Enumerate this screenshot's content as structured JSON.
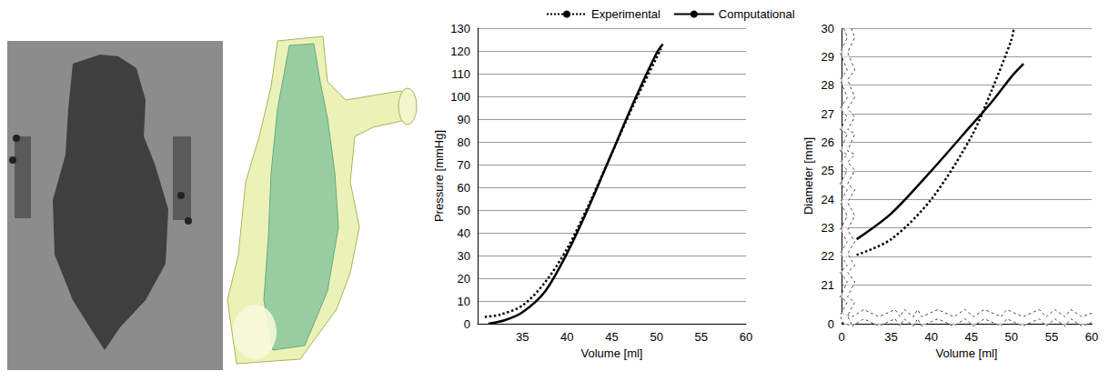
{
  "chart_data": [
    {
      "type": "line",
      "x_label": "Volume [ml]",
      "y_label": "Pressure [mmHg]",
      "xlim": [
        30,
        60
      ],
      "xticks": [
        35,
        40,
        45,
        50,
        55,
        60
      ],
      "ylim": [
        0,
        130
      ],
      "yticks": [
        0,
        10,
        20,
        30,
        40,
        50,
        60,
        70,
        80,
        90,
        100,
        110,
        120,
        130
      ],
      "grid": true,
      "legend": "top",
      "series": [
        {
          "name": "Experimental",
          "color": "#000000",
          "line_style": "dotted",
          "x": [
            30.8,
            32.5,
            35,
            37.5,
            40,
            42.5,
            45,
            47.5,
            50,
            50.5
          ],
          "values": [
            3,
            4,
            8,
            18,
            33,
            53,
            75,
            97,
            117,
            121
          ]
        },
        {
          "name": "Computational",
          "color": "#000000",
          "line_style": "solid",
          "x": [
            31.2,
            33,
            35,
            37.5,
            40,
            42.5,
            45,
            47.5,
            50,
            50.7
          ],
          "values": [
            0,
            1.5,
            5,
            14,
            31,
            52,
            75,
            98,
            119,
            123
          ]
        }
      ]
    },
    {
      "type": "line",
      "x_label": "Volume [ml]",
      "y_label": "Diameter [mm]",
      "xlim": [
        0,
        60
      ],
      "xticks": [
        0,
        35,
        40,
        45,
        50,
        55,
        60
      ],
      "ylim": [
        0,
        30
      ],
      "yticks": [
        0,
        21,
        22,
        23,
        24,
        25,
        26,
        27,
        28,
        29,
        30
      ],
      "grid": true,
      "series": [
        {
          "name": "Experimental",
          "color": "#000000",
          "line_style": "dotted",
          "x": [
            30.7,
            35,
            40,
            45,
            47.5,
            50,
            50.3
          ],
          "values": [
            22.05,
            22.6,
            24.0,
            26.2,
            27.8,
            29.6,
            30
          ]
        },
        {
          "name": "Computational",
          "color": "#000000",
          "line_style": "solid",
          "x": [
            30.7,
            35,
            40,
            45,
            47.5,
            50,
            51.5
          ],
          "values": [
            22.6,
            23.5,
            25.0,
            26.6,
            27.4,
            28.3,
            28.75
          ]
        }
      ]
    }
  ]
}
